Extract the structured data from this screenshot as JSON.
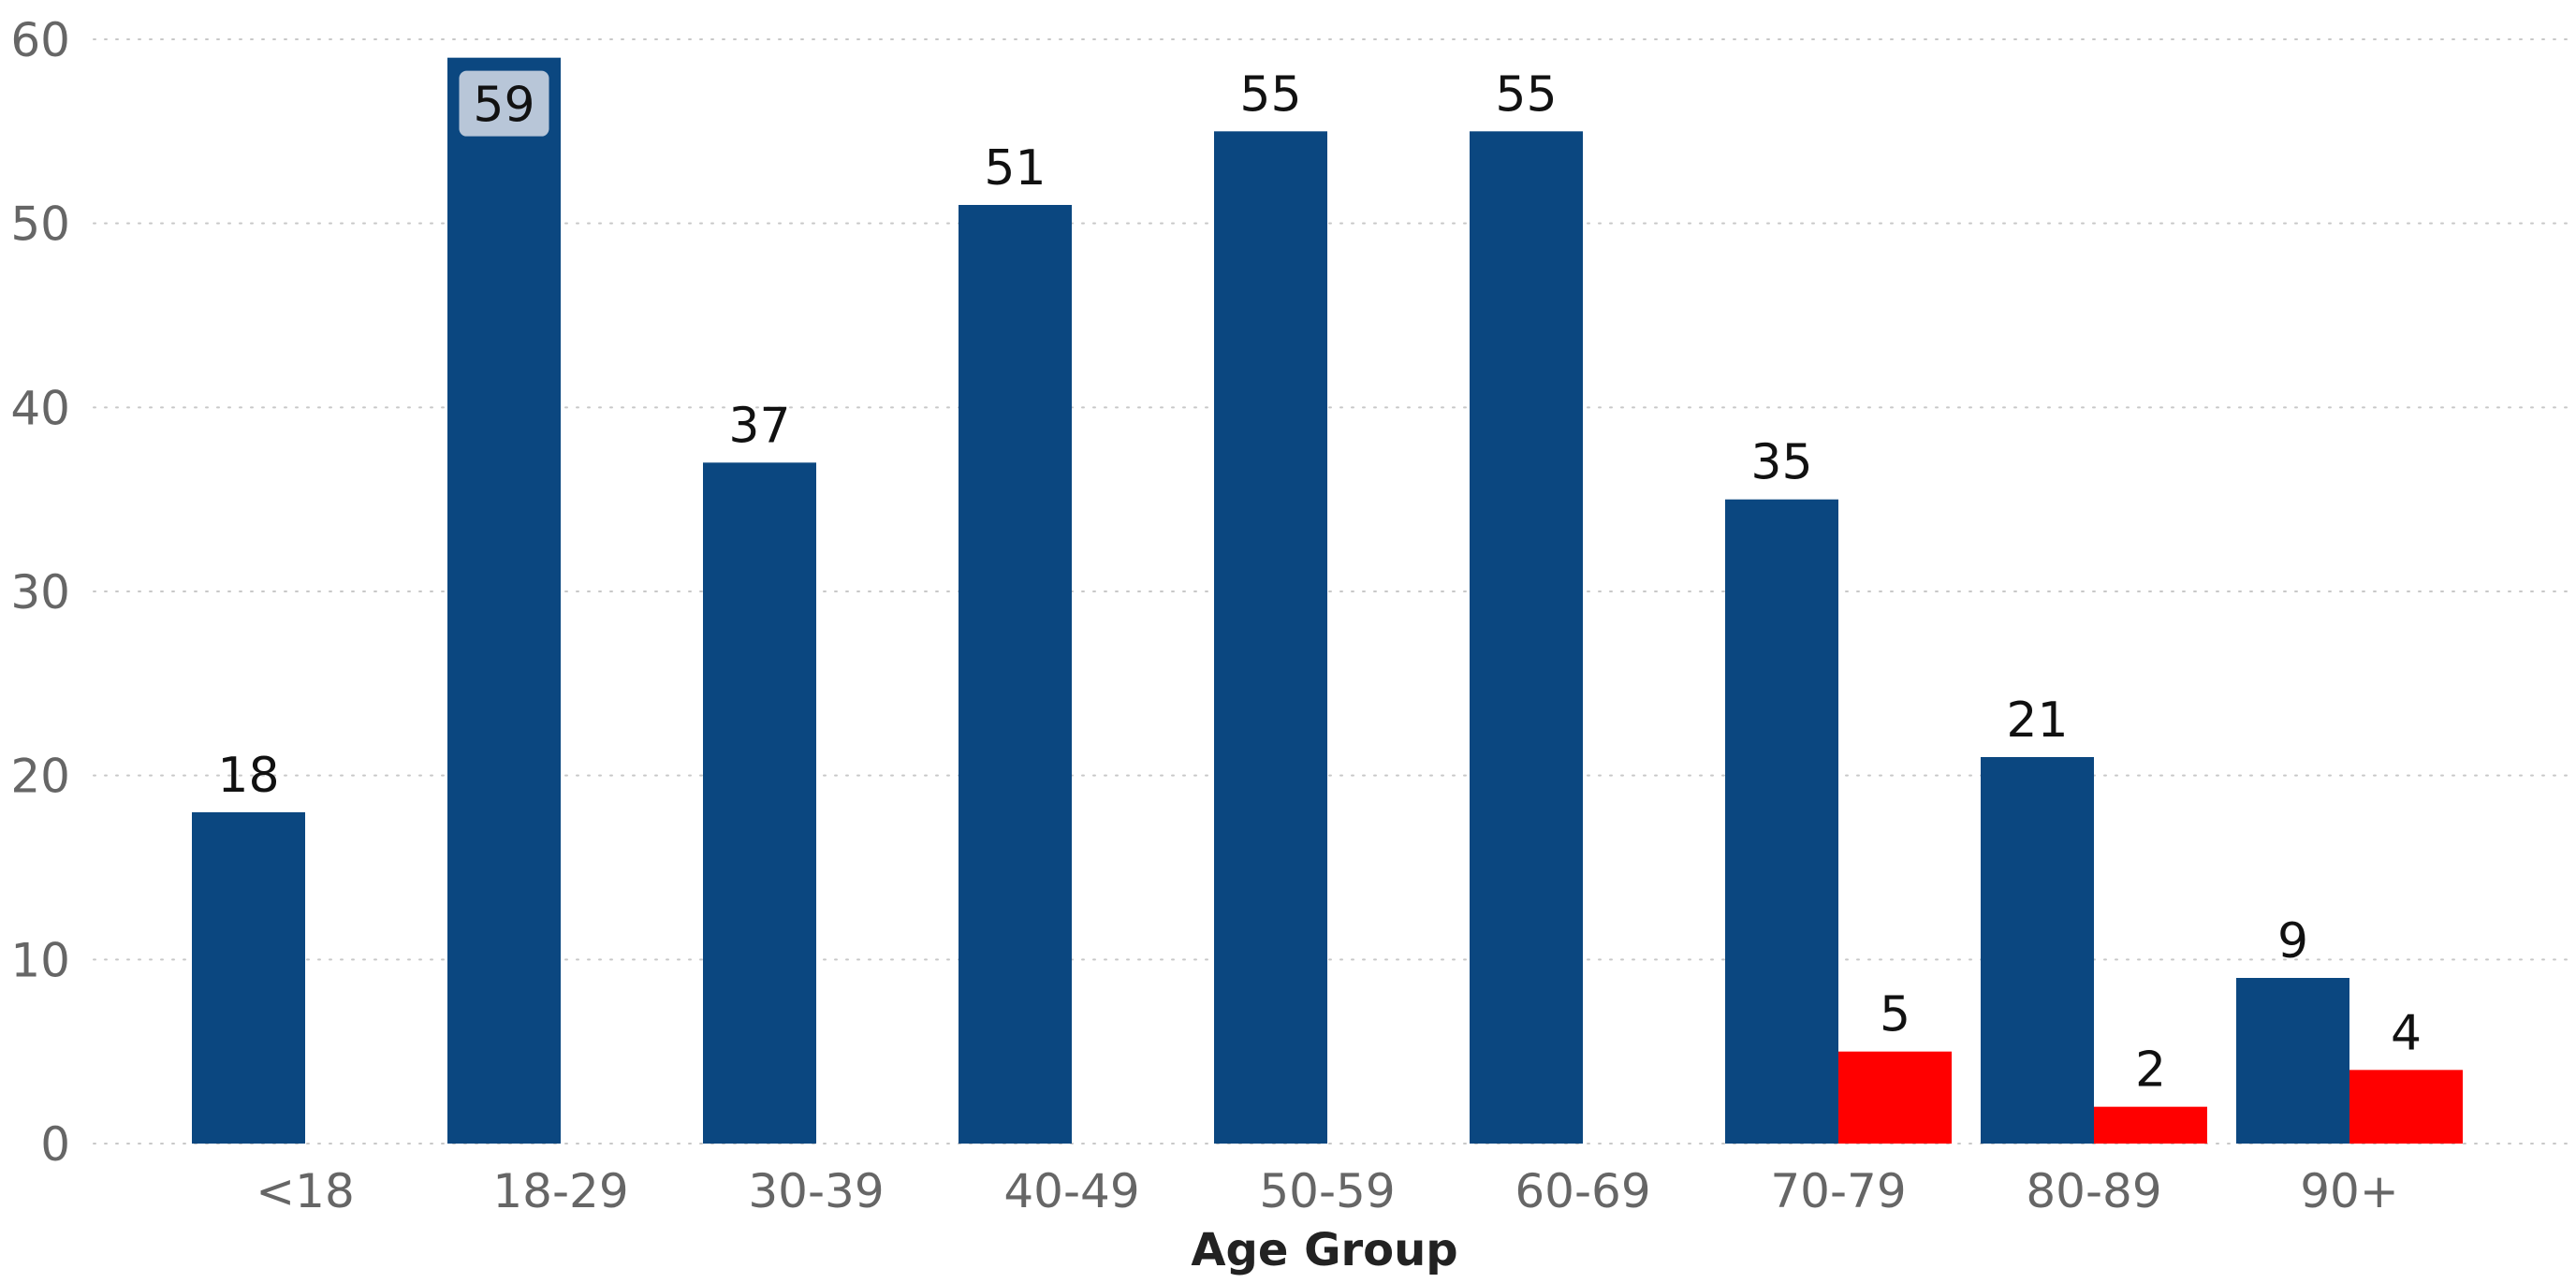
{
  "chart_data": {
    "type": "bar",
    "xlabel": "Age Group",
    "ylabel": "",
    "ylim": [
      0,
      60
    ],
    "yticks": [
      0,
      10,
      20,
      30,
      40,
      50,
      60
    ],
    "grid": true,
    "categories": [
      "<18",
      "18-29",
      "30-39",
      "40-49",
      "50-59",
      "60-69",
      "70-79",
      "80-89",
      "90+"
    ],
    "series": [
      {
        "color": "#0b4780",
        "values": [
          18,
          59,
          37,
          51,
          55,
          55,
          35,
          21,
          9
        ]
      },
      {
        "color": "#ff0000",
        "values": [
          null,
          null,
          null,
          null,
          null,
          null,
          5,
          2,
          4
        ]
      }
    ],
    "highlighted_label": {
      "series": 0,
      "category": "18-29",
      "color": "#b8c6d8"
    }
  }
}
